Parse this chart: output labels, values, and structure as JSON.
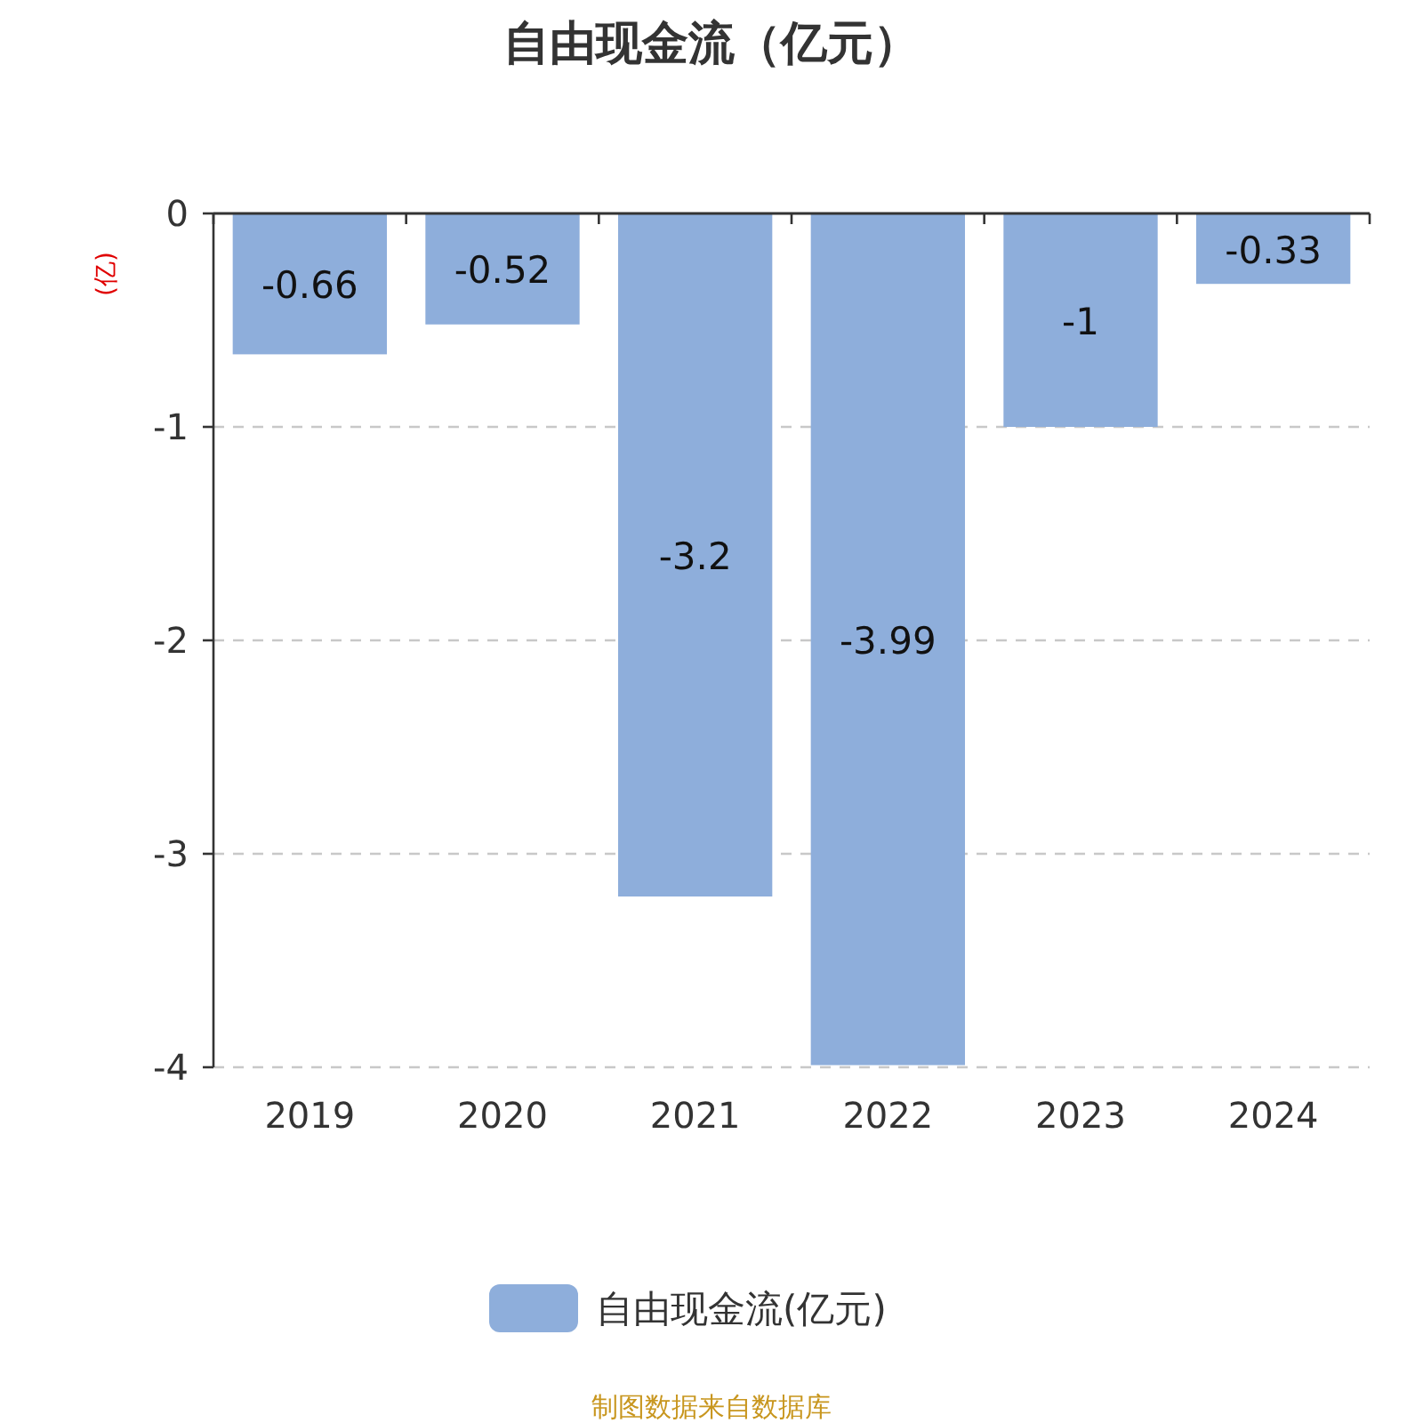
{
  "chart_data": {
    "type": "bar",
    "title": "自由现金流（亿元）",
    "ylabel": "(亿)",
    "categories": [
      "2019",
      "2020",
      "2021",
      "2022",
      "2023",
      "2024"
    ],
    "series": [
      {
        "name": "自由现金流(亿元)",
        "color": "#8eaedb",
        "values": [
          -0.66,
          -0.52,
          -3.2,
          -3.99,
          -1,
          -0.33
        ]
      }
    ],
    "ylim": [
      -4,
      0
    ],
    "yticks": [
      0,
      -1,
      -2,
      -3,
      -4
    ],
    "grid": "y",
    "legend": "bottom",
    "data_labels": true,
    "annotations": [
      "制图数据来自数据库"
    ]
  }
}
